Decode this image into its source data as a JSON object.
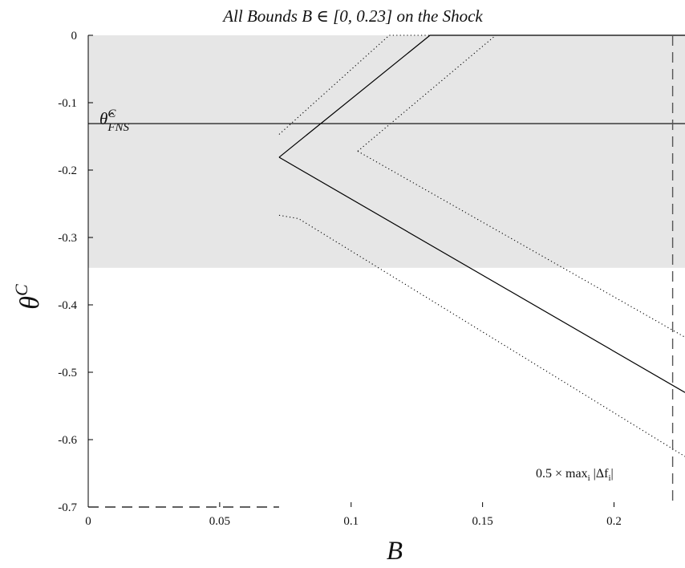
{
  "chart_data": {
    "type": "line",
    "title_prefix": "All Bounds ",
    "title_math": "B ∈ [0, 0.23]",
    "title_suffix": " on the Shock",
    "xlabel": "B",
    "ylabel_base": "θ",
    "ylabel_sup": "C",
    "xlim": [
      0,
      0.227
    ],
    "ylim": [
      -0.7,
      0
    ],
    "xticks": [
      0,
      0.05,
      0.1,
      0.15,
      0.2
    ],
    "xtick_labels": [
      "0",
      "0.05",
      "0.1",
      "0.15",
      "0.2"
    ],
    "yticks": [
      0,
      -0.1,
      -0.2,
      -0.3,
      -0.4,
      -0.5,
      -0.6,
      -0.7
    ],
    "ytick_labels": [
      "0",
      "-0.1",
      "-0.2",
      "-0.3",
      "-0.4",
      "-0.5",
      "-0.6",
      "-0.7"
    ],
    "grid": false,
    "shaded_region": {
      "y_from": -0.345,
      "y_to": 0,
      "color": "#e6e6e6"
    },
    "hline": {
      "y": -0.131,
      "label_base": "θ̂",
      "label_sup": "C",
      "label_sub": "FNS"
    },
    "vline": {
      "x": 0.2223,
      "label": "0.5 × max",
      "label_sub": "i",
      "label_tail": " |Δf",
      "label_tail_sub": "i",
      "label_end": "|"
    },
    "series": [
      {
        "style": "solid",
        "points": [
          [
            0.0726,
            -0.181
          ],
          [
            0.13,
            0.0
          ],
          [
            0.227,
            0.0
          ]
        ]
      },
      {
        "style": "solid",
        "points": [
          [
            0.0726,
            -0.181
          ],
          [
            0.227,
            -0.53
          ]
        ]
      },
      {
        "style": "dotted",
        "points": [
          [
            0.0726,
            -0.147
          ],
          [
            0.1145,
            0.0
          ],
          [
            0.227,
            0.0
          ]
        ]
      },
      {
        "style": "dotted",
        "points": [
          [
            0.1025,
            -0.172
          ],
          [
            0.155,
            0.0
          ],
          [
            0.227,
            0.0
          ]
        ]
      },
      {
        "style": "dotted",
        "points": [
          [
            0.1025,
            -0.172
          ],
          [
            0.227,
            -0.448
          ]
        ]
      },
      {
        "style": "dotted",
        "points": [
          [
            0.0726,
            -0.267
          ],
          [
            0.08,
            -0.272
          ],
          [
            0.227,
            -0.625
          ]
        ]
      }
    ],
    "dashed_baseline": {
      "y": -0.7,
      "x_from": 0,
      "x_to": 0.0726
    }
  }
}
